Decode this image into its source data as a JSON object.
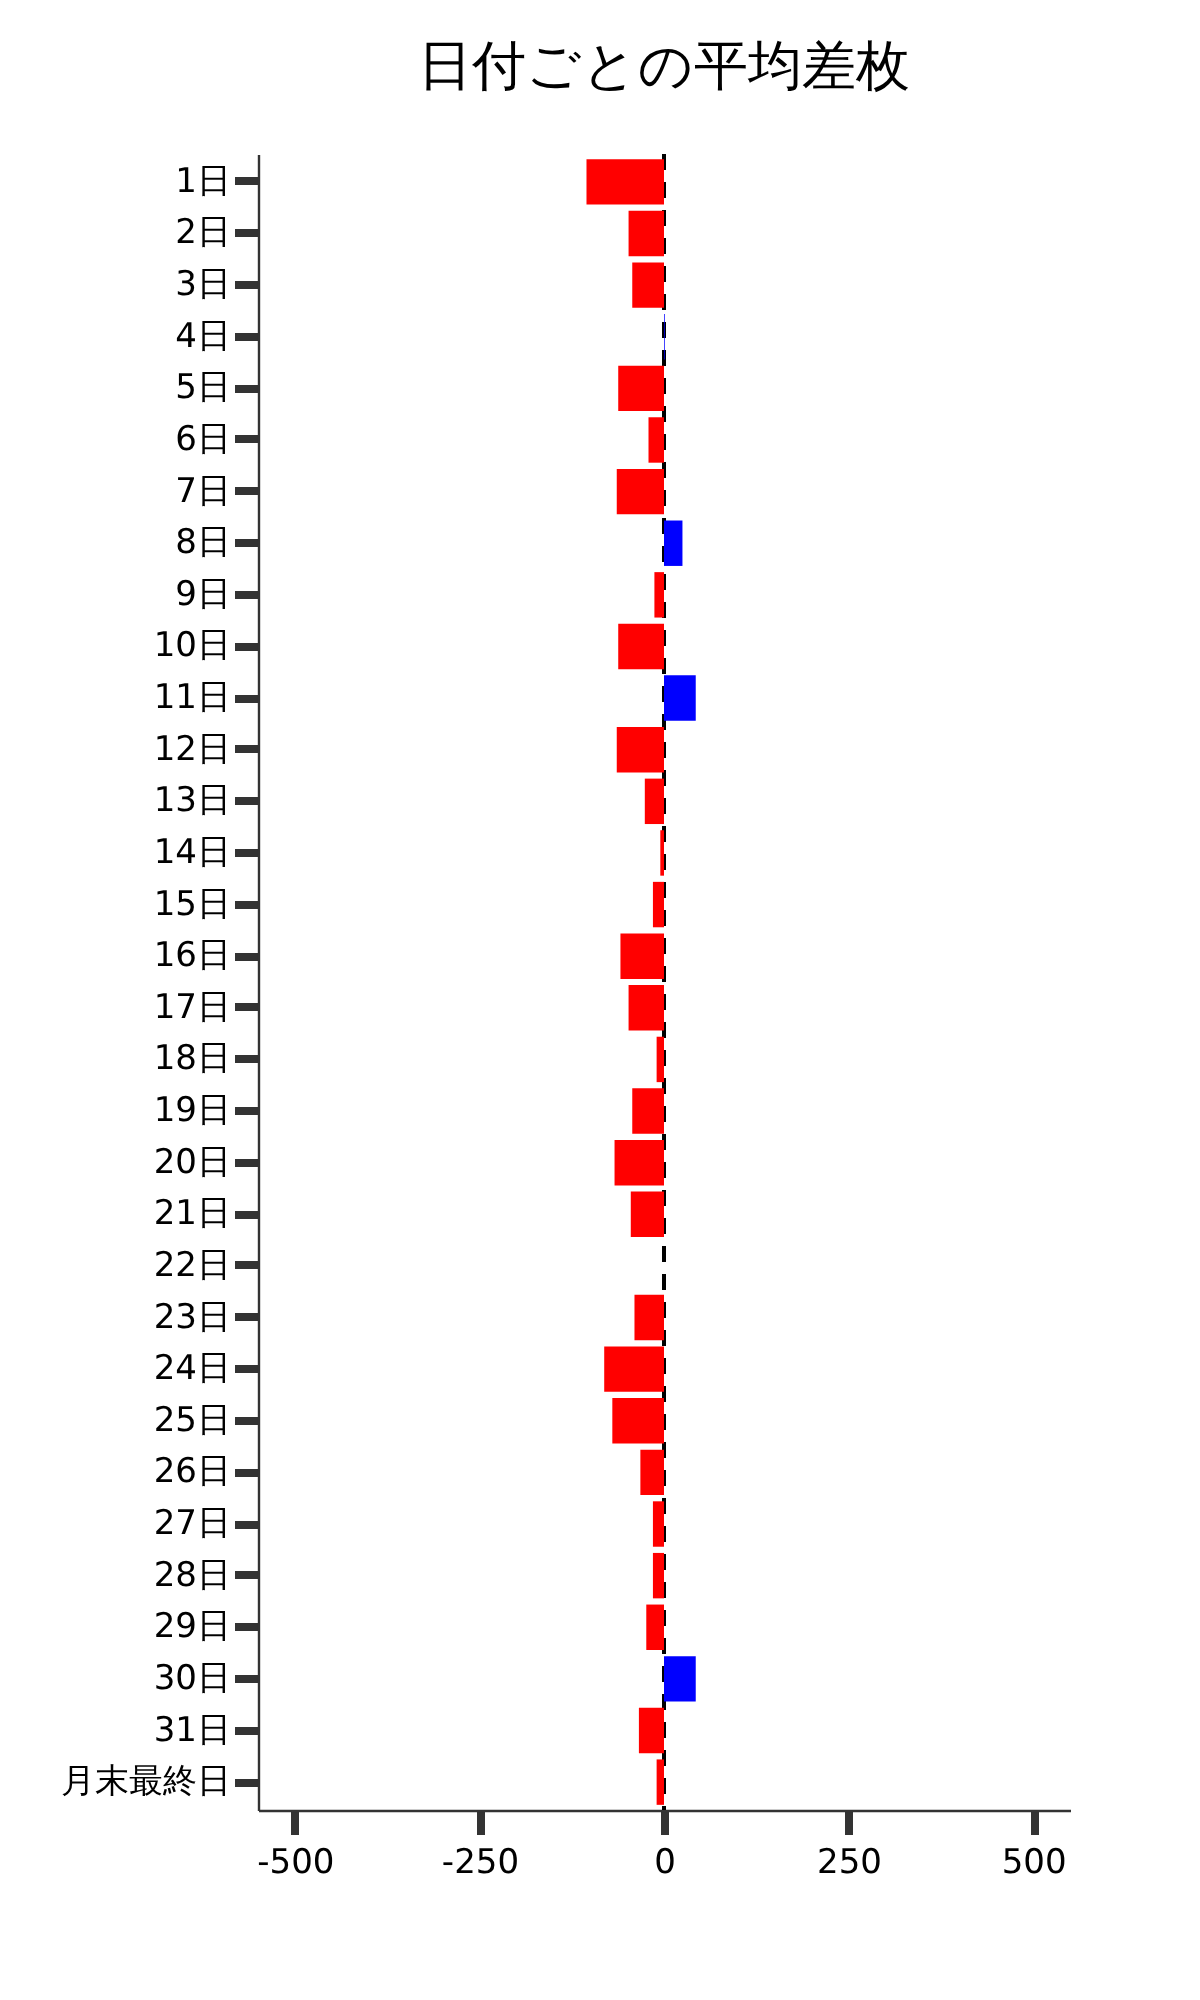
{
  "chart_data": {
    "type": "bar",
    "orientation": "horizontal",
    "title": "日付ごとの平均差枚",
    "categories": [
      "1日",
      "2日",
      "3日",
      "4日",
      "5日",
      "6日",
      "7日",
      "8日",
      "9日",
      "10日",
      "11日",
      "12日",
      "13日",
      "14日",
      "15日",
      "16日",
      "17日",
      "18日",
      "19日",
      "20日",
      "21日",
      "22日",
      "23日",
      "24日",
      "25日",
      "26日",
      "27日",
      "28日",
      "29日",
      "30日",
      "31日",
      "月末最終日"
    ],
    "values": [
      -105,
      -48,
      -43,
      1,
      -62,
      -21,
      -64,
      25,
      -13,
      -62,
      43,
      -64,
      -26,
      -5,
      -15,
      -59,
      -48,
      -10,
      -43,
      -67,
      -45,
      0,
      -40,
      -81,
      -70,
      -32,
      -15,
      -15,
      -24,
      43,
      -34,
      -10
    ],
    "colors": [
      "#ff0000",
      "#ff0000",
      "#ff0000",
      "#0000ff",
      "#ff0000",
      "#ff0000",
      "#ff0000",
      "#0000ff",
      "#ff0000",
      "#ff0000",
      "#0000ff",
      "#ff0000",
      "#ff0000",
      "#ff0000",
      "#ff0000",
      "#ff0000",
      "#ff0000",
      "#ff0000",
      "#ff0000",
      "#ff0000",
      "#ff0000",
      "#ff0000",
      "#ff0000",
      "#ff0000",
      "#ff0000",
      "#ff0000",
      "#ff0000",
      "#ff0000",
      "#ff0000",
      "#0000ff",
      "#ff0000",
      "#ff0000"
    ],
    "xlim": [
      -550,
      550
    ],
    "xticks": [
      -500,
      -250,
      0,
      250,
      500
    ],
    "grid": false,
    "ref_lines": [
      {
        "axis": "x",
        "value": 0,
        "color": "#000000",
        "line_style": "dashed"
      }
    ]
  }
}
